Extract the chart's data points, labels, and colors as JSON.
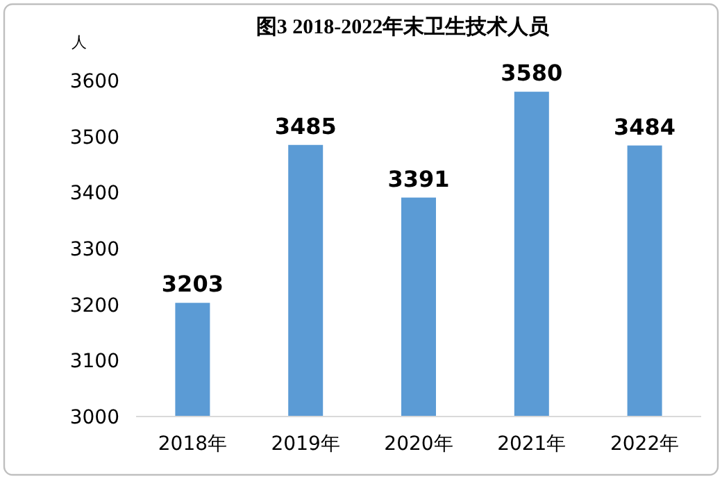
{
  "chart_data": {
    "type": "bar",
    "title": "图3  2018-2022年末卫生技术人员",
    "ylabel": "人",
    "categories": [
      "2018年",
      "2019年",
      "2020年",
      "2021年",
      "2022年"
    ],
    "values": [
      3203,
      3485,
      3391,
      3580,
      3484
    ],
    "color": "#5b9bd5",
    "ylim": [
      3000,
      3600
    ],
    "yticks": [
      3000,
      3100,
      3200,
      3300,
      3400,
      3500,
      3600
    ],
    "data_labels": true,
    "grid": false
  }
}
